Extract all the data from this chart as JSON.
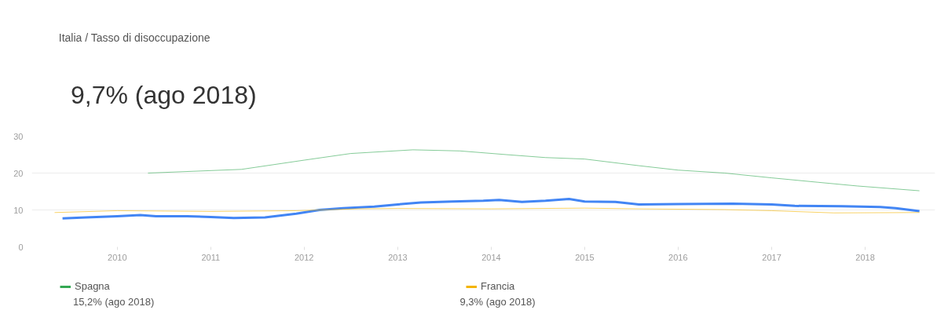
{
  "chart_data": {
    "type": "line",
    "title": "Italia / Tasso di disoccupazione",
    "subtitle": "9,7% (ago 2018)",
    "xlim": [
      "2009-02",
      "2018-10"
    ],
    "xticks": [
      "2010",
      "2011",
      "2012",
      "2013",
      "2014",
      "2015",
      "2016",
      "2017",
      "2018"
    ],
    "ylim": [
      0,
      30
    ],
    "yticks": [
      0,
      10,
      20,
      30
    ],
    "grid": "y",
    "legend": "bottom",
    "annotations": [
      "15,2% (ago 2018)",
      "9,3% (ago 2018)"
    ],
    "series": [
      {
        "color": "#4285f4",
        "x": [
          "2009-06",
          "2009-09",
          "2010-01",
          "2010-04",
          "2010-06",
          "2010-10",
          "2011-01",
          "2011-04",
          "2011-08",
          "2011-12",
          "2012-03",
          "2012-06",
          "2012-10",
          "2013-01",
          "2013-04",
          "2013-08",
          "2013-12",
          "2014-02",
          "2014-05",
          "2014-08",
          "2014-11",
          "2015-01",
          "2015-05",
          "2015-08",
          "2016-01",
          "2016-08",
          "2017-01",
          "2017-04",
          "2017-10",
          "2018-03",
          "2018-05",
          "2018-08"
        ],
        "values": [
          7.7,
          8.0,
          8.3,
          8.6,
          8.3,
          8.3,
          8.1,
          7.8,
          8.0,
          9.0,
          10.0,
          10.5,
          10.9,
          11.5,
          12.0,
          12.3,
          12.5,
          12.7,
          12.2,
          12.5,
          13.0,
          12.3,
          12.2,
          11.5,
          11.6,
          11.7,
          11.5,
          11.1,
          11.0,
          10.8,
          10.5,
          9.7
        ]
      },
      {
        "name": "Spagna",
        "color": "#34a853",
        "x": [
          "2010-05",
          "2011-05",
          "2012-01",
          "2012-07",
          "2013-03",
          "2013-09",
          "2014-03",
          "2014-08",
          "2015-01",
          "2015-08",
          "2016-01",
          "2016-07",
          "2017-01",
          "2017-07",
          "2017-12",
          "2018-08"
        ],
        "values": [
          20.0,
          21.0,
          23.5,
          25.3,
          26.3,
          26.0,
          25.0,
          24.2,
          23.8,
          22.0,
          20.8,
          20.0,
          18.7,
          17.5,
          16.5,
          15.2
        ]
      },
      {
        "name": "Francia",
        "color": "#f4b400",
        "x": [
          "2009-05",
          "2010-01",
          "2011-01",
          "2011-12",
          "2012-08",
          "2013-01",
          "2014-01",
          "2015-01",
          "2015-08",
          "2016-07",
          "2017-01",
          "2017-09",
          "2018-08"
        ],
        "values": [
          9.3,
          9.8,
          9.6,
          9.8,
          10.3,
          10.4,
          10.3,
          10.5,
          10.3,
          10.1,
          9.8,
          9.2,
          9.3
        ]
      }
    ]
  }
}
